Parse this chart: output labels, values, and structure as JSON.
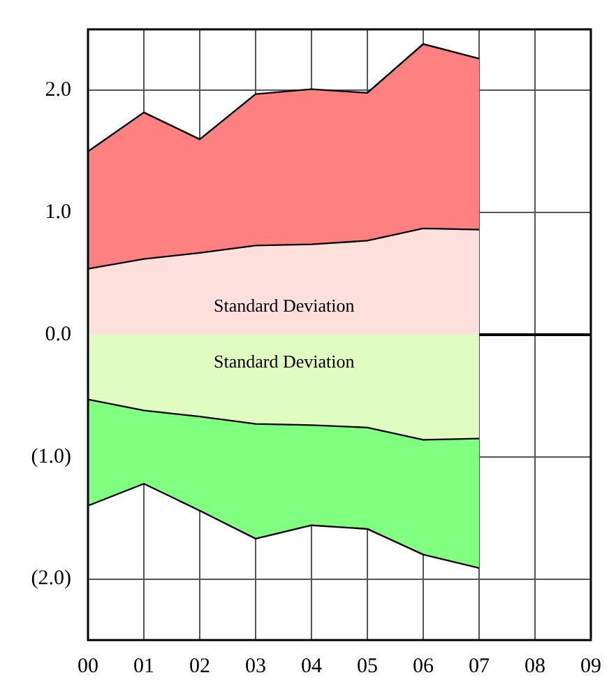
{
  "chart_data": {
    "type": "area",
    "x": [
      0,
      1,
      2,
      3,
      4,
      5,
      6,
      7
    ],
    "series": [
      {
        "color": "#ff8080",
        "values": [
          1.5,
          1.82,
          1.6,
          1.97,
          2.01,
          1.98,
          2.38,
          2.26
        ]
      },
      {
        "color": "#fde0dc",
        "values": [
          0.54,
          0.62,
          0.67,
          0.73,
          0.74,
          0.77,
          0.87,
          0.86
        ]
      },
      {
        "color": "#80ff80",
        "values": [
          -1.4,
          -1.22,
          -1.44,
          -1.67,
          -1.56,
          -1.59,
          -1.8,
          -1.91
        ]
      },
      {
        "color": "#e0fcc0",
        "values": [
          -0.53,
          -0.62,
          -0.67,
          -0.73,
          -0.74,
          -0.76,
          -0.86,
          -0.85
        ]
      }
    ],
    "xlim": [
      0,
      9
    ],
    "ylim": [
      -2.5,
      2.5
    ],
    "xticks": [
      {
        "value": 0,
        "label": "00"
      },
      {
        "value": 1,
        "label": "01"
      },
      {
        "value": 2,
        "label": "02"
      },
      {
        "value": 3,
        "label": "03"
      },
      {
        "value": 4,
        "label": "04"
      },
      {
        "value": 5,
        "label": "05"
      },
      {
        "value": 6,
        "label": "06"
      },
      {
        "value": 7,
        "label": "07"
      },
      {
        "value": 8,
        "label": "08"
      },
      {
        "value": 9,
        "label": "09"
      }
    ],
    "yticks": [
      {
        "value": -2,
        "label": "(2.0)"
      },
      {
        "value": -1,
        "label": "(1.0)"
      },
      {
        "value": 0,
        "label": "0.0"
      },
      {
        "value": 1,
        "label": "1.0"
      },
      {
        "value": 2,
        "label": "2.0"
      }
    ],
    "annotations": [
      "Standard Deviation",
      "Standard Deviation"
    ],
    "grid": true,
    "legend": false,
    "marker": "none",
    "line_style": "solid"
  }
}
